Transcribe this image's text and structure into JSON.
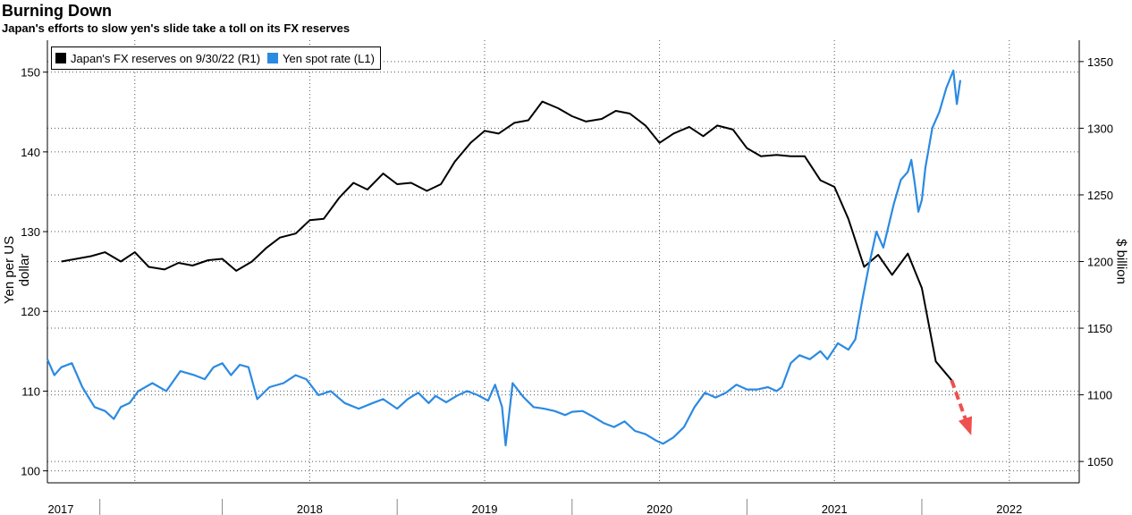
{
  "title": "Burning Down",
  "subtitle": "Japan's efforts to slow yen's slide take a toll on its FX reserves",
  "colors": {
    "reserves": "#000000",
    "yen": "#2b8ae2",
    "arrow": "#ef4f4f",
    "grid": "#555555"
  },
  "chart_data": {
    "type": "line",
    "title": "Burning Down",
    "subtitle": "Japan's efforts to slow yen's slide take a toll on its FX reserves",
    "legend_position": "top-left",
    "grid": true,
    "x_ticks": [
      "2017",
      "2018",
      "2019",
      "2020",
      "2021",
      "2022"
    ],
    "xlim": [
      2017.0,
      2022.9
    ],
    "left_axis": {
      "label": "Yen per US dollar",
      "ticks": [
        100,
        110,
        120,
        130,
        140,
        150
      ],
      "ylim": [
        98.5,
        154
      ]
    },
    "right_axis": {
      "label": "$ billion",
      "ticks": [
        1050,
        1100,
        1150,
        1200,
        1250,
        1300,
        1350
      ],
      "ylim": [
        1034,
        1366
      ]
    },
    "series": [
      {
        "name": "Japan's FX reserves on 9/30/22 (R1)",
        "axis": "right",
        "points": [
          [
            2017.08,
            1200
          ],
          [
            2017.25,
            1204
          ],
          [
            2017.33,
            1207
          ],
          [
            2017.42,
            1200
          ],
          [
            2017.5,
            1207
          ],
          [
            2017.58,
            1196
          ],
          [
            2017.67,
            1194
          ],
          [
            2017.75,
            1199
          ],
          [
            2017.83,
            1197
          ],
          [
            2017.92,
            1201
          ],
          [
            2018.0,
            1202
          ],
          [
            2018.08,
            1193
          ],
          [
            2018.17,
            1200
          ],
          [
            2018.25,
            1210
          ],
          [
            2018.33,
            1218
          ],
          [
            2018.42,
            1221
          ],
          [
            2018.5,
            1231
          ],
          [
            2018.58,
            1232
          ],
          [
            2018.67,
            1248
          ],
          [
            2018.75,
            1259
          ],
          [
            2018.83,
            1254
          ],
          [
            2018.92,
            1266
          ],
          [
            2019.0,
            1258
          ],
          [
            2019.08,
            1259
          ],
          [
            2019.17,
            1253
          ],
          [
            2019.25,
            1258
          ],
          [
            2019.33,
            1275
          ],
          [
            2019.42,
            1289
          ],
          [
            2019.5,
            1298
          ],
          [
            2019.58,
            1296
          ],
          [
            2019.67,
            1304
          ],
          [
            2019.75,
            1306
          ],
          [
            2019.83,
            1320
          ],
          [
            2019.92,
            1315
          ],
          [
            2020.0,
            1309
          ],
          [
            2020.08,
            1305
          ],
          [
            2020.17,
            1307
          ],
          [
            2020.25,
            1313
          ],
          [
            2020.33,
            1311
          ],
          [
            2020.42,
            1302
          ],
          [
            2020.5,
            1289
          ],
          [
            2020.58,
            1296
          ],
          [
            2020.67,
            1301
          ],
          [
            2020.75,
            1294
          ],
          [
            2020.83,
            1302
          ],
          [
            2020.92,
            1299
          ],
          [
            2021.0,
            1285
          ],
          [
            2021.08,
            1279
          ],
          [
            2021.17,
            1280
          ],
          [
            2021.25,
            1279
          ],
          [
            2021.33,
            1279
          ],
          [
            2021.42,
            1261
          ],
          [
            2021.5,
            1256
          ],
          [
            2021.58,
            1232
          ],
          [
            2021.67,
            1196
          ],
          [
            2021.75,
            1205
          ],
          [
            2021.83,
            1190
          ],
          [
            2021.92,
            1206
          ],
          [
            2022.0,
            1180
          ],
          [
            2022.08,
            1125
          ],
          [
            2022.17,
            1111
          ]
        ]
      },
      {
        "name": "Yen spot rate (L1)",
        "axis": "left",
        "points": [
          [
            2017.0,
            114
          ],
          [
            2017.04,
            112
          ],
          [
            2017.08,
            113
          ],
          [
            2017.14,
            113.5
          ],
          [
            2017.2,
            110.5
          ],
          [
            2017.27,
            108
          ],
          [
            2017.33,
            107.5
          ],
          [
            2017.38,
            106.5
          ],
          [
            2017.42,
            108
          ],
          [
            2017.47,
            108.5
          ],
          [
            2017.52,
            110
          ],
          [
            2017.6,
            111
          ],
          [
            2017.68,
            110
          ],
          [
            2017.76,
            112.5
          ],
          [
            2017.84,
            112
          ],
          [
            2017.9,
            111.5
          ],
          [
            2017.95,
            113
          ],
          [
            2018.0,
            113.5
          ],
          [
            2018.05,
            112
          ],
          [
            2018.1,
            113.3
          ],
          [
            2018.15,
            113
          ],
          [
            2018.2,
            109
          ],
          [
            2018.27,
            110.5
          ],
          [
            2018.35,
            111
          ],
          [
            2018.42,
            112
          ],
          [
            2018.48,
            111.5
          ],
          [
            2018.55,
            109.5
          ],
          [
            2018.62,
            110
          ],
          [
            2018.7,
            108.5
          ],
          [
            2018.78,
            107.8
          ],
          [
            2018.86,
            108.5
          ],
          [
            2018.92,
            109
          ],
          [
            2019.0,
            107.8
          ],
          [
            2019.06,
            109
          ],
          [
            2019.12,
            109.8
          ],
          [
            2019.18,
            108.5
          ],
          [
            2019.22,
            109.4
          ],
          [
            2019.28,
            108.6
          ],
          [
            2019.34,
            109.4
          ],
          [
            2019.4,
            110
          ],
          [
            2019.46,
            109.5
          ],
          [
            2019.52,
            108.8
          ],
          [
            2019.56,
            110.8
          ],
          [
            2019.6,
            108
          ],
          [
            2019.62,
            103.2
          ],
          [
            2019.66,
            111
          ],
          [
            2019.72,
            109.3
          ],
          [
            2019.78,
            108
          ],
          [
            2019.84,
            107.8
          ],
          [
            2019.9,
            107.5
          ],
          [
            2019.96,
            107
          ],
          [
            2020.0,
            107.4
          ],
          [
            2020.06,
            107.5
          ],
          [
            2020.12,
            106.8
          ],
          [
            2020.18,
            106
          ],
          [
            2020.24,
            105.5
          ],
          [
            2020.3,
            106.2
          ],
          [
            2020.36,
            105
          ],
          [
            2020.42,
            104.6
          ],
          [
            2020.48,
            103.8
          ],
          [
            2020.52,
            103.4
          ],
          [
            2020.58,
            104.2
          ],
          [
            2020.64,
            105.5
          ],
          [
            2020.7,
            108
          ],
          [
            2020.76,
            109.8
          ],
          [
            2020.82,
            109.2
          ],
          [
            2020.88,
            109.8
          ],
          [
            2020.94,
            110.8
          ],
          [
            2021.0,
            110.2
          ],
          [
            2021.06,
            110.2
          ],
          [
            2021.12,
            110.5
          ],
          [
            2021.17,
            110
          ],
          [
            2021.2,
            110.5
          ],
          [
            2021.25,
            113.5
          ],
          [
            2021.3,
            114.5
          ],
          [
            2021.36,
            114
          ],
          [
            2021.42,
            115
          ],
          [
            2021.46,
            114
          ],
          [
            2021.52,
            116
          ],
          [
            2021.58,
            115.2
          ],
          [
            2021.62,
            116.5
          ],
          [
            2021.66,
            121.5
          ],
          [
            2021.7,
            126
          ],
          [
            2021.74,
            130
          ],
          [
            2021.78,
            128
          ],
          [
            2021.84,
            133.5
          ],
          [
            2021.88,
            136.5
          ],
          [
            2021.92,
            137.5
          ],
          [
            2021.94,
            139
          ],
          [
            2021.96,
            136
          ],
          [
            2021.98,
            132.5
          ],
          [
            2022.0,
            134
          ],
          [
            2022.02,
            138
          ],
          [
            2022.06,
            143
          ],
          [
            2022.1,
            145
          ],
          [
            2022.14,
            148
          ],
          [
            2022.18,
            150.2
          ],
          [
            2022.2,
            146
          ],
          [
            2022.22,
            149
          ]
        ]
      }
    ]
  }
}
